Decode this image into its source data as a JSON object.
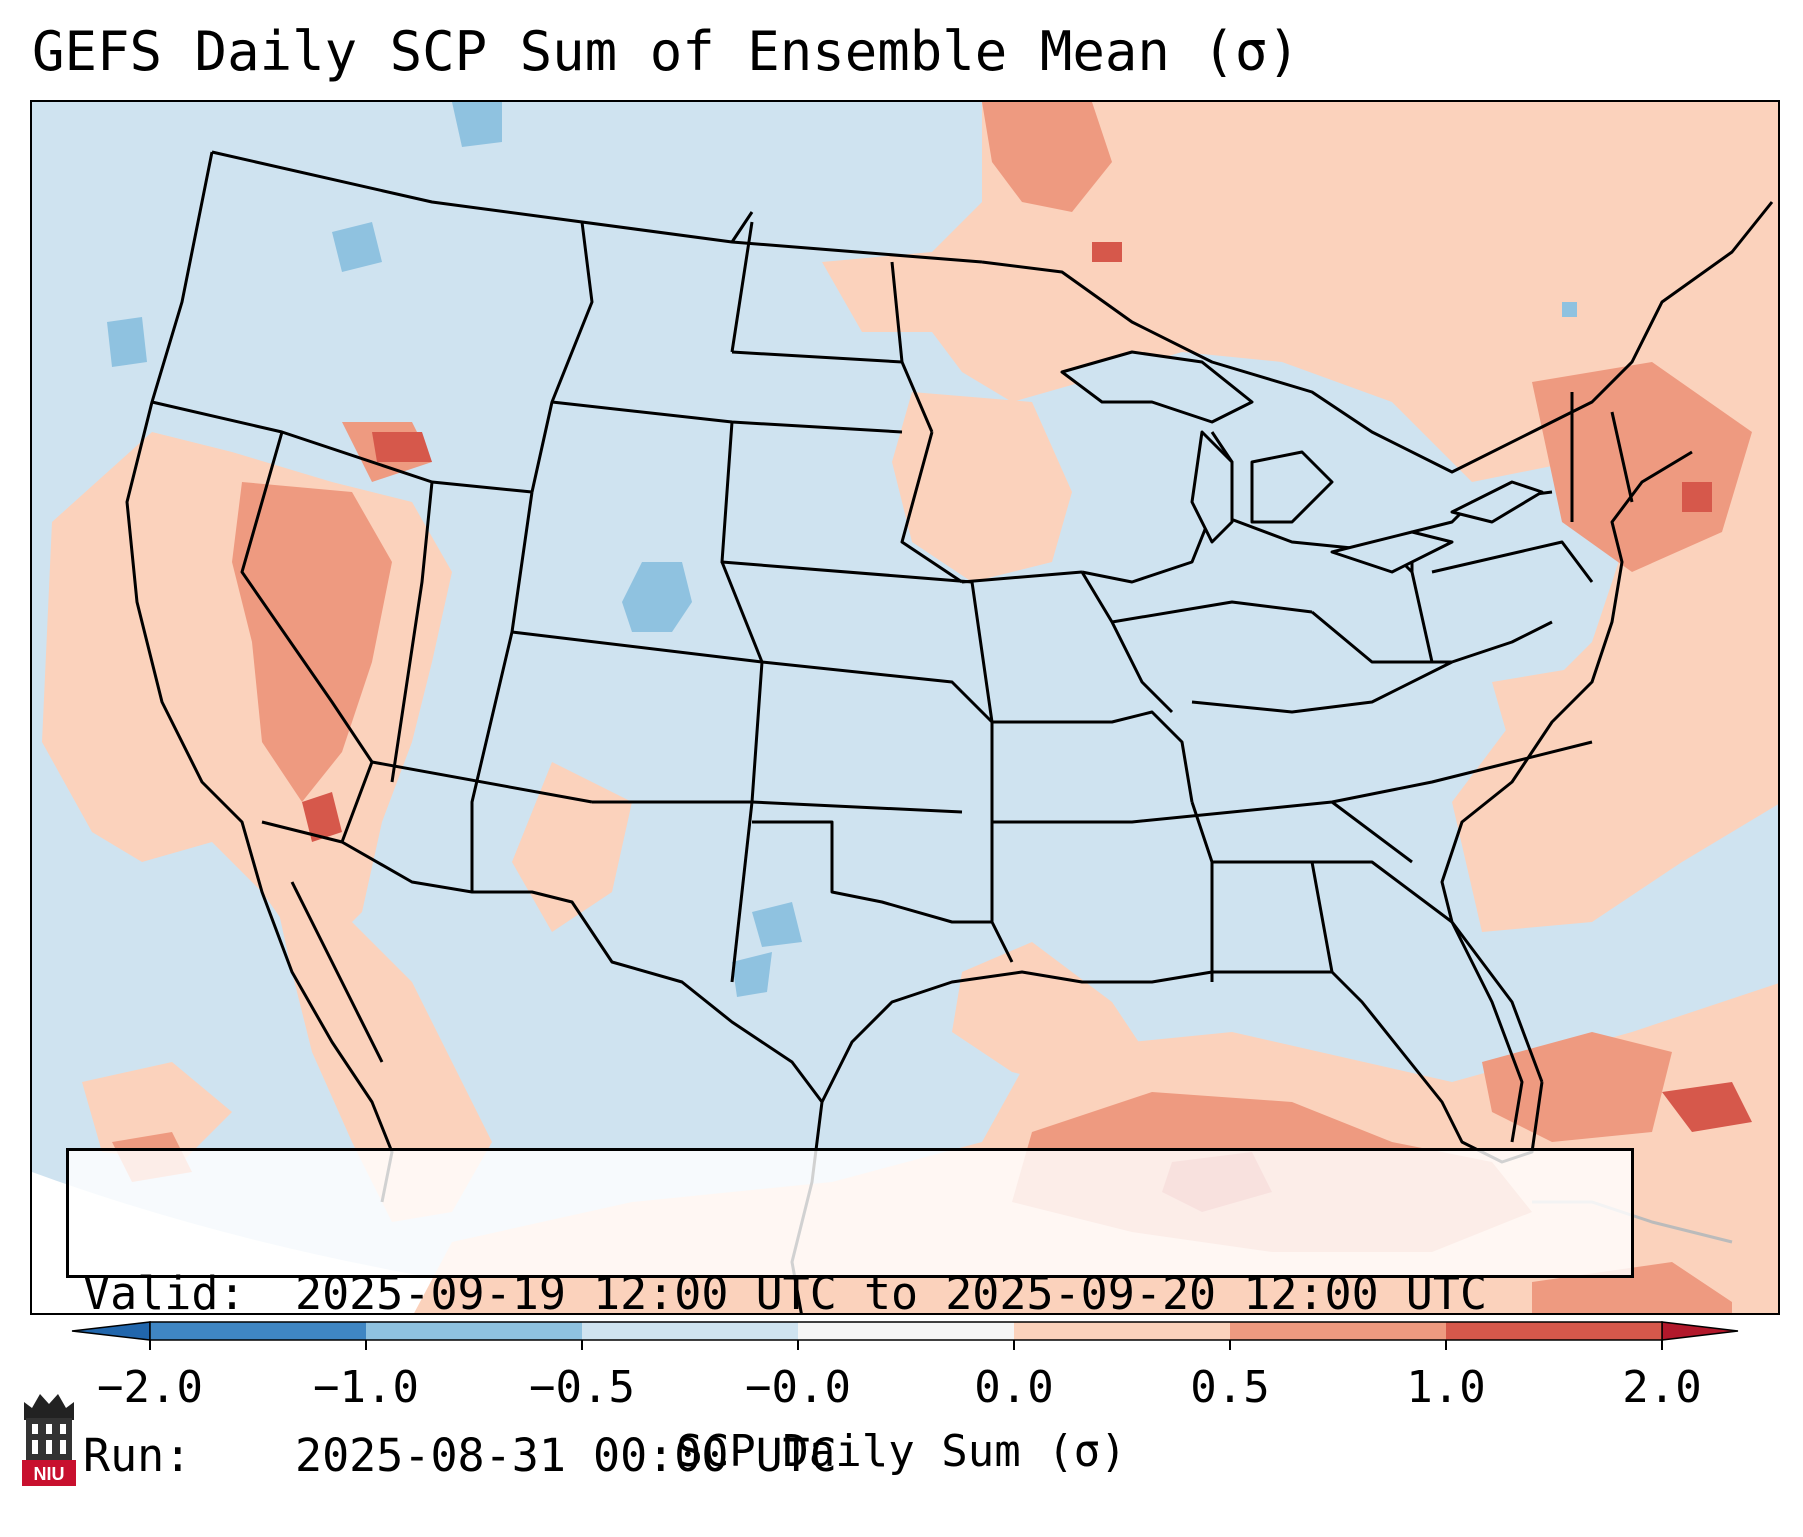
{
  "title": "GEFS Daily SCP Sum of Ensemble Mean (σ)",
  "info": {
    "valid_label": "Valid:",
    "valid_value": "2025-09-19 12:00 UTC to 2025-09-20 12:00 UTC",
    "run_label": "Run:",
    "run_value": "2025-08-31 00:00 UTC"
  },
  "colorbar": {
    "label": "SCP Daily Sum (σ)",
    "ticks": [
      "−2.0",
      "−1.0",
      "−0.5",
      "−0.0",
      "0.0",
      "0.5",
      "1.0",
      "2.0"
    ],
    "bins": [
      {
        "range": "-2.0 to -1.0",
        "color": "#3f86c3"
      },
      {
        "range": "-1.0 to -0.5",
        "color": "#8fc2e0"
      },
      {
        "range": "-0.5 to -0.0",
        "color": "#cfe3f0"
      },
      {
        "range": "-0.0 to 0.0",
        "color": "#f5f5f5"
      },
      {
        "range": "0.0 to 0.5",
        "color": "#fbd2bc"
      },
      {
        "range": "0.5 to 1.0",
        "color": "#ee9a80"
      },
      {
        "range": "1.0 to 2.0",
        "color": "#d6584b"
      }
    ],
    "extend_low_color": "#2166ac",
    "extend_high_color": "#b2182b"
  },
  "logo": {
    "text": "NIU",
    "color": "#c8102e"
  },
  "colors": {
    "ocean_base": "#cfe3f0",
    "land_base": "#cfe3f0",
    "boundary": "#000000"
  }
}
